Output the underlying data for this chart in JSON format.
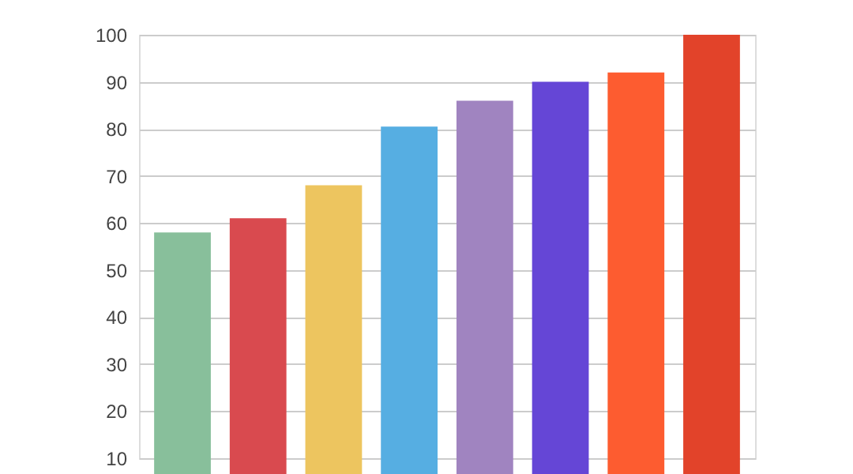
{
  "chart_data": {
    "type": "bar",
    "categories": [
      null,
      null,
      null,
      null,
      null,
      null,
      null,
      null
    ],
    "values": [
      58,
      61,
      68,
      80.5,
      86,
      90,
      92,
      100
    ],
    "colors": [
      "#88bf9b",
      "#d94a4f",
      "#edc55f",
      "#56aee2",
      "#a084c0",
      "#6546d6",
      "#fd5c30",
      "#e2432a"
    ],
    "ylim": [
      10,
      100
    ],
    "yticks": [
      10,
      20,
      30,
      40,
      50,
      60,
      70,
      80,
      90,
      100
    ],
    "grid": "y",
    "tick_labels": "y"
  }
}
